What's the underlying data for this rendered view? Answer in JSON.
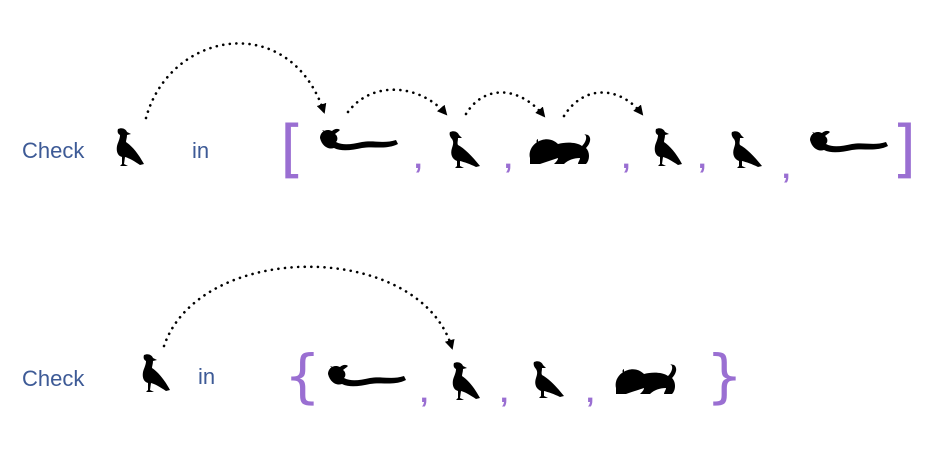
{
  "row1": {
    "check_label": "Check",
    "in_label": "in",
    "query_glyph": "ibis-icon",
    "open_bracket": "[",
    "close_bracket": "]",
    "separator": ",",
    "items": [
      "horned-viper-icon",
      "vulture-icon",
      "lion-icon",
      "ibis-icon",
      "vulture-icon",
      "horned-viper-icon"
    ]
  },
  "row2": {
    "check_label": "Check",
    "in_label": "in",
    "query_glyph": "ibis-icon",
    "open_bracket": "{",
    "close_bracket": "}",
    "separator": ",",
    "items": [
      "horned-viper-icon",
      "ibis-icon",
      "vulture-icon",
      "lion-icon"
    ]
  },
  "colors": {
    "label": "#3d5a96",
    "bracket": "#9a6fd2",
    "glyph": "#000000"
  }
}
